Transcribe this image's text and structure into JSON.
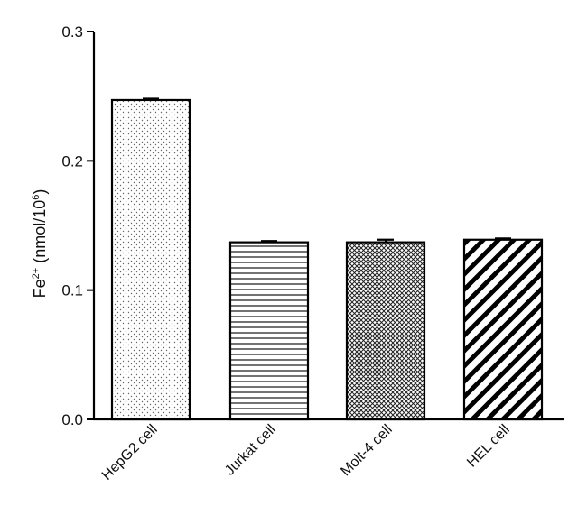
{
  "chart_data": {
    "type": "bar",
    "categories": [
      "HepG2 cell",
      "Jurkat cell",
      "Molt-4 cell",
      "HEL cell"
    ],
    "values": [
      0.247,
      0.137,
      0.137,
      0.139
    ],
    "errors": [
      0.001,
      0.001,
      0.002,
      0.001
    ],
    "patterns": [
      "dots",
      "horizontal-lines",
      "crosshatch",
      "diagonal-lines"
    ],
    "ylabel": {
      "prefix": "Fe",
      "prefix_sup": "2+",
      "middle": " (nmol/10",
      "unit_sup": "6",
      "suffix": ")"
    },
    "ylim": [
      0,
      0.3
    ],
    "yticks": [
      0.0,
      0.1,
      0.2,
      0.3
    ],
    "ytick_labels": [
      "0.0",
      "0.1",
      "0.2",
      "0.3"
    ],
    "grid": false,
    "colors": {
      "bar_outline": "#000000",
      "fill": "#ffffff"
    }
  }
}
